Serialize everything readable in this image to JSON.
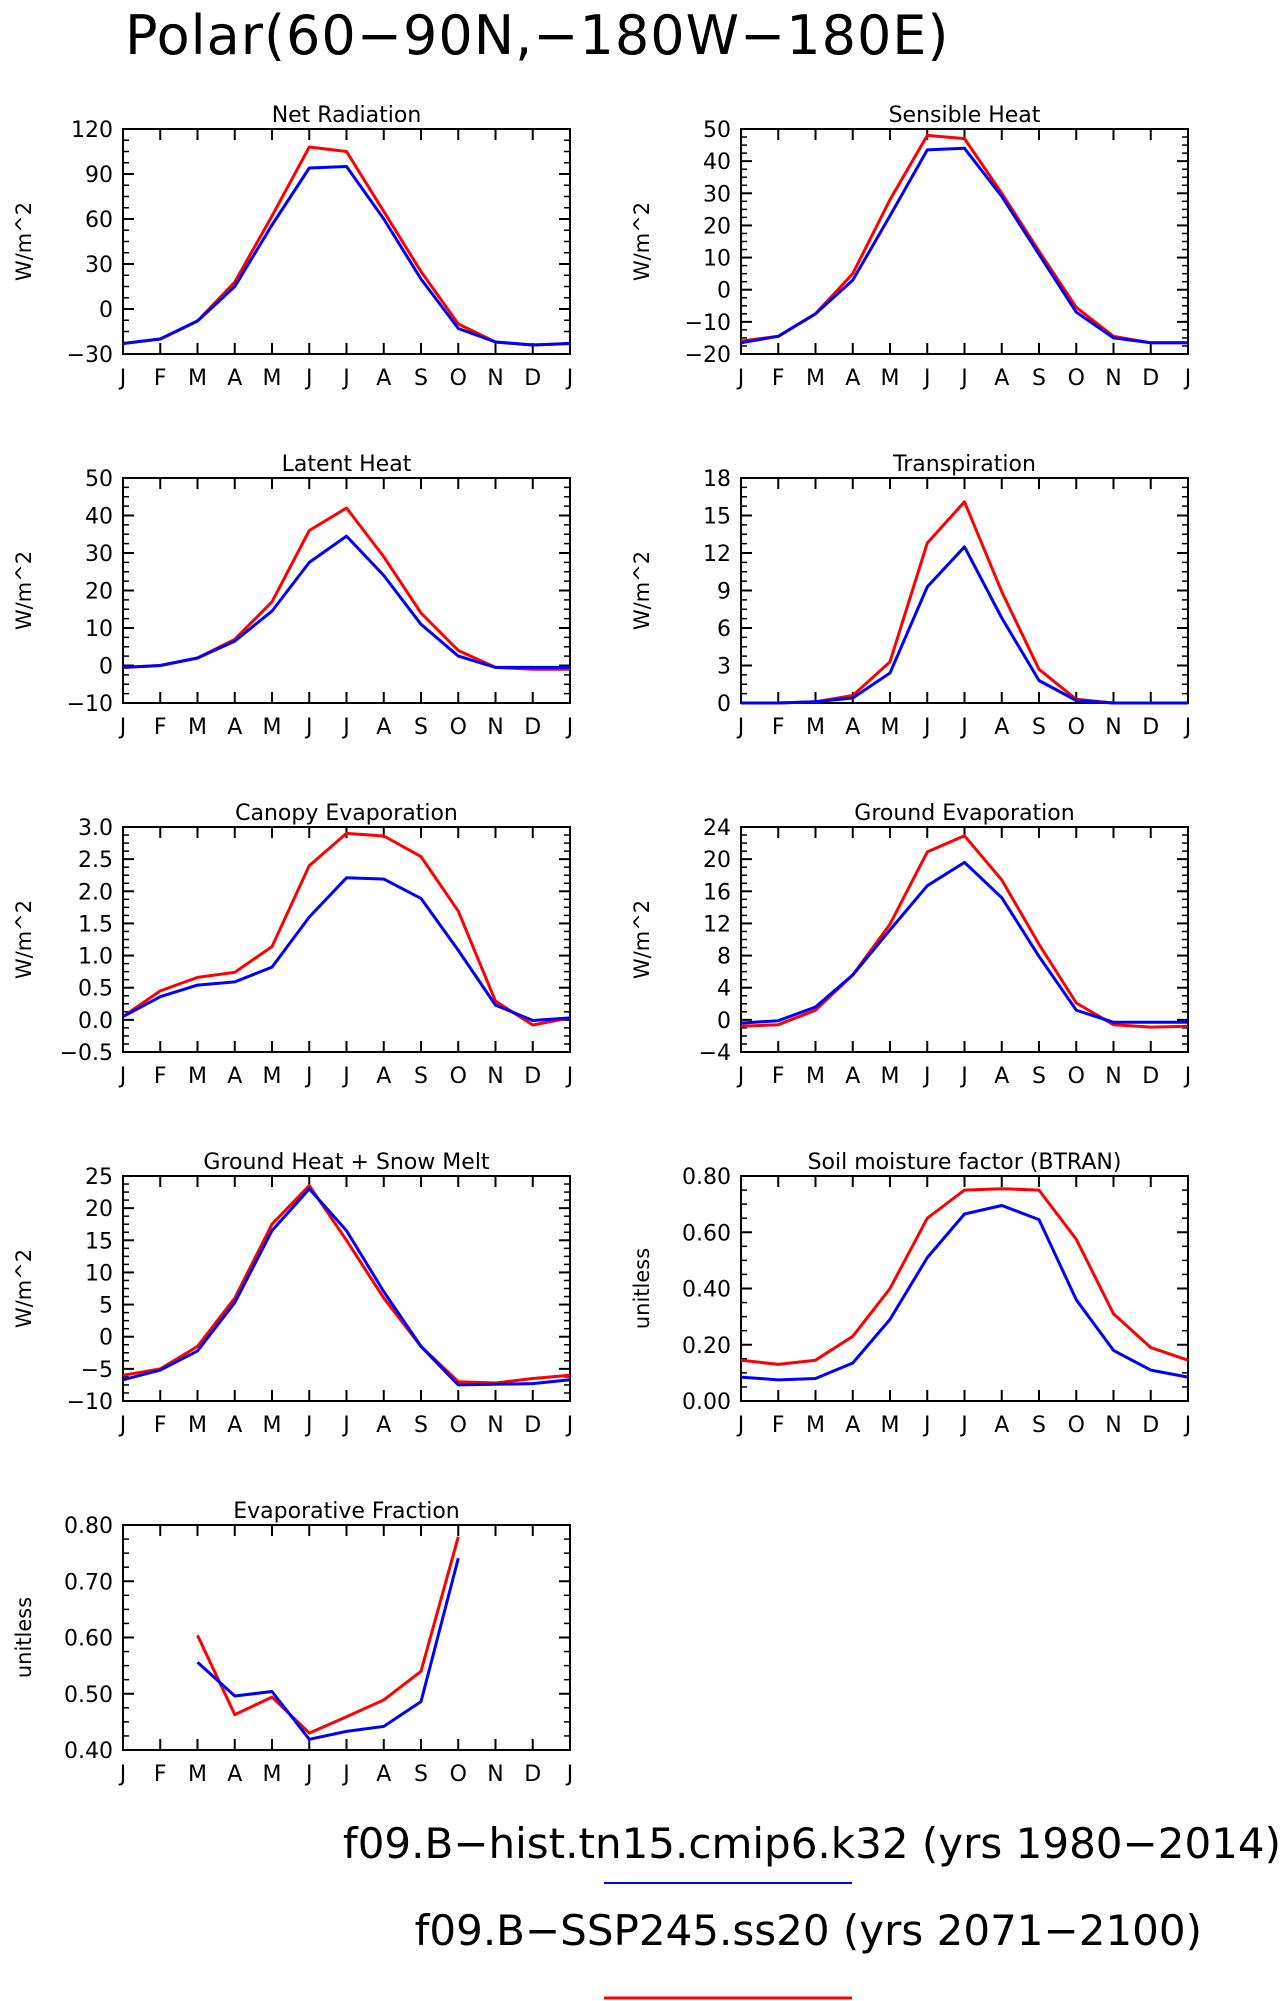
{
  "page_title": "Polar(60−90N,−180W−180E)",
  "legend": [
    {
      "label": "f09.B−hist.tn15.cmip6.k32 (yrs 1980−2014)",
      "color": "#0000ff"
    },
    {
      "label": "f09.B−SSP245.ss20 (yrs 2071−2100)",
      "color": "#ff0000"
    }
  ],
  "chart_data": [
    {
      "type": "line",
      "title": "Net Radiation",
      "ylabel": "W/m^2",
      "categories": [
        "J",
        "F",
        "M",
        "A",
        "M",
        "J",
        "J",
        "A",
        "S",
        "O",
        "N",
        "D",
        "J"
      ],
      "ylim": [
        -30,
        120
      ],
      "yticks": [
        -30,
        0,
        30,
        60,
        90,
        120
      ],
      "ytick_labels": [
        "−30",
        "0",
        "30",
        "60",
        "90",
        "120"
      ],
      "series": [
        {
          "color": "#ff0000",
          "values": [
            -23,
            -20,
            -8,
            18,
            62,
            108,
            105,
            65,
            25,
            -10,
            -22,
            -24,
            -23
          ]
        },
        {
          "color": "#0000ff",
          "values": [
            -23,
            -20,
            -8,
            15,
            56,
            94,
            95,
            60,
            20,
            -13,
            -22,
            -24,
            -23
          ]
        }
      ]
    },
    {
      "type": "line",
      "title": "Sensible Heat",
      "ylabel": "W/m^2",
      "categories": [
        "J",
        "F",
        "M",
        "A",
        "M",
        "J",
        "J",
        "A",
        "S",
        "O",
        "N",
        "D",
        "J"
      ],
      "ylim": [
        -20,
        50
      ],
      "yticks": [
        -20,
        -10,
        0,
        10,
        20,
        30,
        40,
        50
      ],
      "ytick_labels": [
        "−20",
        "−10",
        "0",
        "10",
        "20",
        "30",
        "40",
        "50"
      ],
      "series": [
        {
          "color": "#ff0000",
          "values": [
            -16,
            -14.5,
            -7.5,
            5,
            28,
            48,
            47,
            30,
            12,
            -5.5,
            -14.5,
            -16.5,
            -16.5
          ]
        },
        {
          "color": "#0000ff",
          "values": [
            -16.5,
            -14.5,
            -7.5,
            3,
            23,
            43.5,
            44,
            29,
            11,
            -7,
            -15,
            -16.5,
            -16.5
          ]
        }
      ]
    },
    {
      "type": "line",
      "title": "Latent Heat",
      "ylabel": "W/m^2",
      "categories": [
        "J",
        "F",
        "M",
        "A",
        "M",
        "J",
        "J",
        "A",
        "S",
        "O",
        "N",
        "D",
        "J"
      ],
      "ylim": [
        -10,
        50
      ],
      "yticks": [
        -10,
        0,
        10,
        20,
        30,
        40,
        50
      ],
      "ytick_labels": [
        "−10",
        "0",
        "10",
        "20",
        "30",
        "40",
        "50"
      ],
      "series": [
        {
          "color": "#ff0000",
          "values": [
            -0.5,
            0,
            2,
            7,
            17,
            36,
            42,
            29,
            14,
            4,
            -0.5,
            -1,
            -1
          ]
        },
        {
          "color": "#0000ff",
          "values": [
            -0.5,
            0,
            2,
            6.5,
            14.5,
            27.5,
            34.5,
            24,
            11,
            2.5,
            -0.5,
            -0.5,
            -0.5
          ]
        }
      ]
    },
    {
      "type": "line",
      "title": "Transpiration",
      "ylabel": "W/m^2",
      "categories": [
        "J",
        "F",
        "M",
        "A",
        "M",
        "J",
        "J",
        "A",
        "S",
        "O",
        "N",
        "D",
        "J"
      ],
      "ylim": [
        0,
        18
      ],
      "yticks": [
        0,
        3,
        6,
        9,
        12,
        15,
        18
      ],
      "ytick_labels": [
        "0",
        "3",
        "6",
        "9",
        "12",
        "15",
        "18"
      ],
      "series": [
        {
          "color": "#ff0000",
          "values": [
            0,
            0,
            0.1,
            0.6,
            3.3,
            12.8,
            16.1,
            8.9,
            2.7,
            0.3,
            0,
            0,
            0
          ]
        },
        {
          "color": "#0000ff",
          "values": [
            0,
            0,
            0.1,
            0.4,
            2.4,
            9.3,
            12.5,
            6.8,
            1.8,
            0.2,
            0,
            0,
            0
          ]
        }
      ]
    },
    {
      "type": "line",
      "title": "Canopy Evaporation",
      "ylabel": "W/m^2",
      "categories": [
        "J",
        "F",
        "M",
        "A",
        "M",
        "J",
        "J",
        "A",
        "S",
        "O",
        "N",
        "D",
        "J"
      ],
      "ylim": [
        -0.5,
        3.0
      ],
      "yticks": [
        -0.5,
        0,
        0.5,
        1.0,
        1.5,
        2.0,
        2.5,
        3.0
      ],
      "ytick_labels": [
        "−0.5",
        "0.0",
        "0.5",
        "1.0",
        "1.5",
        "2.0",
        "2.5",
        "3.0"
      ],
      "series": [
        {
          "color": "#ff0000",
          "values": [
            0.05,
            0.45,
            0.66,
            0.74,
            1.14,
            2.4,
            2.9,
            2.86,
            2.54,
            1.69,
            0.29,
            -0.08,
            0.03
          ]
        },
        {
          "color": "#0000ff",
          "values": [
            0.05,
            0.36,
            0.54,
            0.59,
            0.82,
            1.6,
            2.21,
            2.19,
            1.89,
            1.08,
            0.23,
            -0.01,
            0.03
          ]
        }
      ]
    },
    {
      "type": "line",
      "title": "Ground Evaporation",
      "ylabel": "W/m^2",
      "categories": [
        "J",
        "F",
        "M",
        "A",
        "M",
        "J",
        "J",
        "A",
        "S",
        "O",
        "N",
        "D",
        "J"
      ],
      "ylim": [
        -4,
        24
      ],
      "yticks": [
        -4,
        0,
        4,
        8,
        12,
        16,
        20,
        24
      ],
      "ytick_labels": [
        "−4",
        "0",
        "4",
        "8",
        "12",
        "16",
        "20",
        "24"
      ],
      "series": [
        {
          "color": "#ff0000",
          "values": [
            -0.8,
            -0.6,
            1.2,
            5.6,
            11.9,
            20.9,
            22.9,
            17.4,
            9.4,
            2.1,
            -0.6,
            -0.9,
            -0.8
          ]
        },
        {
          "color": "#0000ff",
          "values": [
            -0.4,
            -0.1,
            1.6,
            5.6,
            11.2,
            16.7,
            19.6,
            15.2,
            7.9,
            1.2,
            -0.3,
            -0.3,
            -0.3
          ]
        }
      ]
    },
    {
      "type": "line",
      "title": "Ground Heat + Snow Melt",
      "ylabel": "W/m^2",
      "categories": [
        "J",
        "F",
        "M",
        "A",
        "M",
        "J",
        "J",
        "A",
        "S",
        "O",
        "N",
        "D",
        "J"
      ],
      "ylim": [
        -10,
        25
      ],
      "yticks": [
        -10,
        -5,
        0,
        5,
        10,
        15,
        20,
        25
      ],
      "ytick_labels": [
        "−10",
        "−5",
        "0",
        "5",
        "10",
        "15",
        "20",
        "25"
      ],
      "series": [
        {
          "color": "#ff0000",
          "values": [
            -6,
            -5,
            -1.5,
            6,
            17.5,
            23.5,
            15,
            6,
            -1.5,
            -7,
            -7.2,
            -6.5,
            -6
          ]
        },
        {
          "color": "#0000ff",
          "values": [
            -6.7,
            -5.2,
            -2.2,
            5.3,
            16.5,
            23,
            16.5,
            7,
            -1.5,
            -7.5,
            -7.4,
            -7.3,
            -6.7
          ]
        }
      ]
    },
    {
      "type": "line",
      "title": "Soil moisture factor (BTRAN)",
      "ylabel": "unitless",
      "categories": [
        "J",
        "F",
        "M",
        "A",
        "M",
        "J",
        "J",
        "A",
        "S",
        "O",
        "N",
        "D",
        "J"
      ],
      "ylim": [
        0,
        0.8
      ],
      "yticks": [
        0,
        0.2,
        0.4,
        0.6,
        0.8
      ],
      "ytick_labels": [
        "0.00",
        "0.20",
        "0.40",
        "0.60",
        "0.80"
      ],
      "series": [
        {
          "color": "#ff0000",
          "values": [
            0.145,
            0.13,
            0.145,
            0.23,
            0.4,
            0.65,
            0.75,
            0.755,
            0.75,
            0.575,
            0.31,
            0.19,
            0.145
          ]
        },
        {
          "color": "#0000ff",
          "values": [
            0.085,
            0.075,
            0.08,
            0.135,
            0.29,
            0.51,
            0.665,
            0.695,
            0.645,
            0.36,
            0.18,
            0.11,
            0.085
          ]
        }
      ]
    },
    {
      "type": "line",
      "title": "Evaporative Fraction",
      "ylabel": "unitless",
      "categories": [
        "J",
        "F",
        "M",
        "A",
        "M",
        "J",
        "J",
        "A",
        "S",
        "O",
        "N",
        "D",
        "J"
      ],
      "ylim": [
        0.4,
        0.8
      ],
      "yticks": [
        0.4,
        0.5,
        0.6,
        0.7,
        0.8
      ],
      "ytick_labels": [
        "0.40",
        "0.50",
        "0.60",
        "0.70",
        "0.80"
      ],
      "series": [
        {
          "color": "#ff0000",
          "values": [
            null,
            null,
            0.604,
            0.463,
            0.494,
            0.43,
            0.459,
            0.489,
            0.54,
            0.779,
            null,
            null,
            null
          ]
        },
        {
          "color": "#0000ff",
          "values": [
            null,
            null,
            0.556,
            0.496,
            0.504,
            0.419,
            0.433,
            0.442,
            0.486,
            0.741,
            null,
            null,
            null
          ]
        }
      ]
    }
  ]
}
